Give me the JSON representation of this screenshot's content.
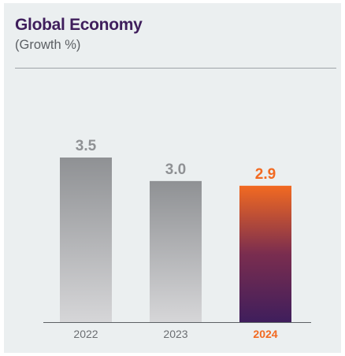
{
  "header": {
    "title": "Global Economy",
    "subtitle": "(Growth %)"
  },
  "chart_data": {
    "type": "bar",
    "title": "Global Economy",
    "subtitle": "(Growth %)",
    "xlabel": "",
    "ylabel": "",
    "categories": [
      "2022",
      "2023",
      "2024"
    ],
    "values": [
      3.5,
      3.0,
      2.9
    ],
    "value_labels": [
      "3.5",
      "3.0",
      "2.9"
    ],
    "highlighted": [
      false,
      false,
      true
    ],
    "ylim": [
      0,
      3.5
    ],
    "grid": false,
    "legend": "none",
    "colors": {
      "bar_top": "#8f9194",
      "bar_bottom": "#d6d6d8",
      "highlight_top": "#f26a21",
      "highlight_mid": "#7a2d4f",
      "highlight_bottom": "#3f1e5c",
      "label_default": "#8f9194",
      "label_highlight": "#f26a21",
      "tick_default": "#6b6e72",
      "axis": "#5c6064"
    }
  }
}
